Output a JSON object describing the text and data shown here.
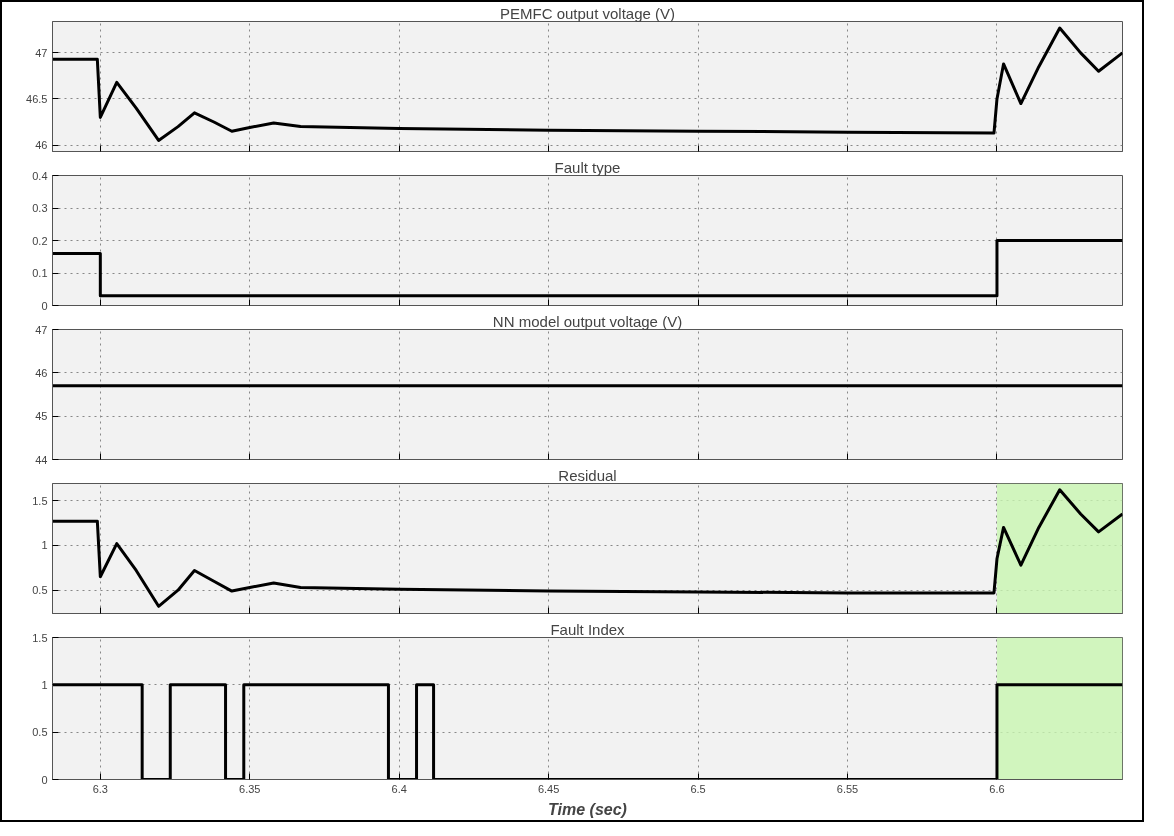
{
  "chart_data": [
    {
      "type": "line",
      "title": "PEMFC output voltage (V)",
      "xlim": [
        6.284,
        6.642
      ],
      "xticks": [
        6.3,
        6.35,
        6.4,
        6.45,
        6.5,
        6.55,
        6.6
      ],
      "ylim": [
        45.93,
        47.34
      ],
      "yticks": [
        46,
        46.5,
        47
      ],
      "grid": true,
      "tick_labels": "y",
      "line_style": "solid",
      "marker": "none",
      "series": [
        {
          "color": "#000000",
          "x": [
            6.284,
            6.299,
            6.3,
            6.3055,
            6.312,
            6.3195,
            6.326,
            6.3315,
            6.338,
            6.344,
            6.35,
            6.358,
            6.367,
            6.4,
            6.45,
            6.5,
            6.55,
            6.599,
            6.6,
            6.6022,
            6.608,
            6.614,
            6.621,
            6.628,
            6.634,
            6.642
          ],
          "values": [
            46.93,
            46.93,
            46.3,
            46.68,
            46.4,
            46.05,
            46.2,
            46.35,
            46.25,
            46.15,
            46.19,
            46.24,
            46.2,
            46.18,
            46.16,
            46.15,
            46.14,
            46.13,
            46.5,
            46.88,
            46.45,
            46.85,
            47.27,
            47.0,
            46.8,
            47.0
          ]
        }
      ]
    },
    {
      "type": "line",
      "title": "Fault type",
      "xlim": [
        6.284,
        6.642
      ],
      "xticks": [
        6.3,
        6.35,
        6.4,
        6.45,
        6.5,
        6.55,
        6.6
      ],
      "ylim": [
        0,
        0.4
      ],
      "yticks": [
        0,
        0.1,
        0.2,
        0.3,
        0.4
      ],
      "grid": true,
      "tick_labels": "y",
      "line_style": "solid",
      "marker": "none",
      "series": [
        {
          "color": "#000000",
          "x": [
            6.284,
            6.3,
            6.3,
            6.6,
            6.6,
            6.642
          ],
          "values": [
            0.16,
            0.16,
            0.03,
            0.03,
            0.2,
            0.2
          ]
        }
      ]
    },
    {
      "type": "line",
      "title": "NN model output voltage (V)",
      "xlim": [
        6.284,
        6.642
      ],
      "xticks": [
        6.3,
        6.35,
        6.4,
        6.45,
        6.5,
        6.55,
        6.6
      ],
      "ylim": [
        44,
        47
      ],
      "yticks": [
        44,
        45,
        46,
        47
      ],
      "grid": true,
      "tick_labels": "y",
      "line_style": "solid",
      "marker": "none",
      "series": [
        {
          "color": "#000000",
          "x": [
            6.284,
            6.642
          ],
          "values": [
            45.7,
            45.7
          ]
        }
      ]
    },
    {
      "type": "line",
      "title": "Residual",
      "xlim": [
        6.284,
        6.642
      ],
      "xticks": [
        6.3,
        6.35,
        6.4,
        6.45,
        6.5,
        6.55,
        6.6
      ],
      "ylim": [
        0.24,
        1.69
      ],
      "yticks": [
        0.5,
        1,
        1.5
      ],
      "grid": true,
      "tick_labels": "y",
      "line_style": "solid",
      "marker": "none",
      "bands": [
        {
          "axis": "x",
          "from": 6.6,
          "to": 6.642,
          "color": "#c8f5b0"
        }
      ],
      "series": [
        {
          "color": "#000000",
          "x": [
            6.284,
            6.299,
            6.3,
            6.3055,
            6.312,
            6.3195,
            6.326,
            6.3315,
            6.338,
            6.344,
            6.35,
            6.358,
            6.367,
            6.4,
            6.45,
            6.5,
            6.55,
            6.599,
            6.6,
            6.6022,
            6.608,
            6.614,
            6.621,
            6.628,
            6.634,
            6.642
          ],
          "values": [
            1.27,
            1.27,
            0.65,
            1.02,
            0.72,
            0.32,
            0.5,
            0.72,
            0.6,
            0.49,
            0.53,
            0.58,
            0.53,
            0.51,
            0.49,
            0.48,
            0.47,
            0.47,
            0.85,
            1.2,
            0.78,
            1.2,
            1.62,
            1.35,
            1.15,
            1.35
          ]
        }
      ]
    },
    {
      "type": "line",
      "title": "Fault Index",
      "xlabel": "Time (sec)",
      "xlim": [
        6.284,
        6.642
      ],
      "xticks": [
        6.3,
        6.35,
        6.4,
        6.45,
        6.5,
        6.55,
        6.6
      ],
      "ylim": [
        0,
        1.5
      ],
      "yticks": [
        0,
        0.5,
        1,
        1.5
      ],
      "grid": true,
      "line_style": "solid",
      "marker": "none",
      "bands": [
        {
          "axis": "x",
          "from": 6.6,
          "to": 6.642,
          "color": "#c8f5b0"
        }
      ],
      "series": [
        {
          "color": "#000000",
          "x": [
            6.284,
            6.314,
            6.314,
            6.3234,
            6.3234,
            6.3419,
            6.3419,
            6.348,
            6.348,
            6.3964,
            6.3964,
            6.4058,
            6.4058,
            6.4115,
            6.4115,
            6.6,
            6.6,
            6.642
          ],
          "values": [
            1,
            1,
            0,
            0,
            1,
            1,
            0,
            0,
            1,
            1,
            0,
            0,
            1,
            1,
            0,
            0,
            1,
            1
          ]
        }
      ]
    }
  ]
}
